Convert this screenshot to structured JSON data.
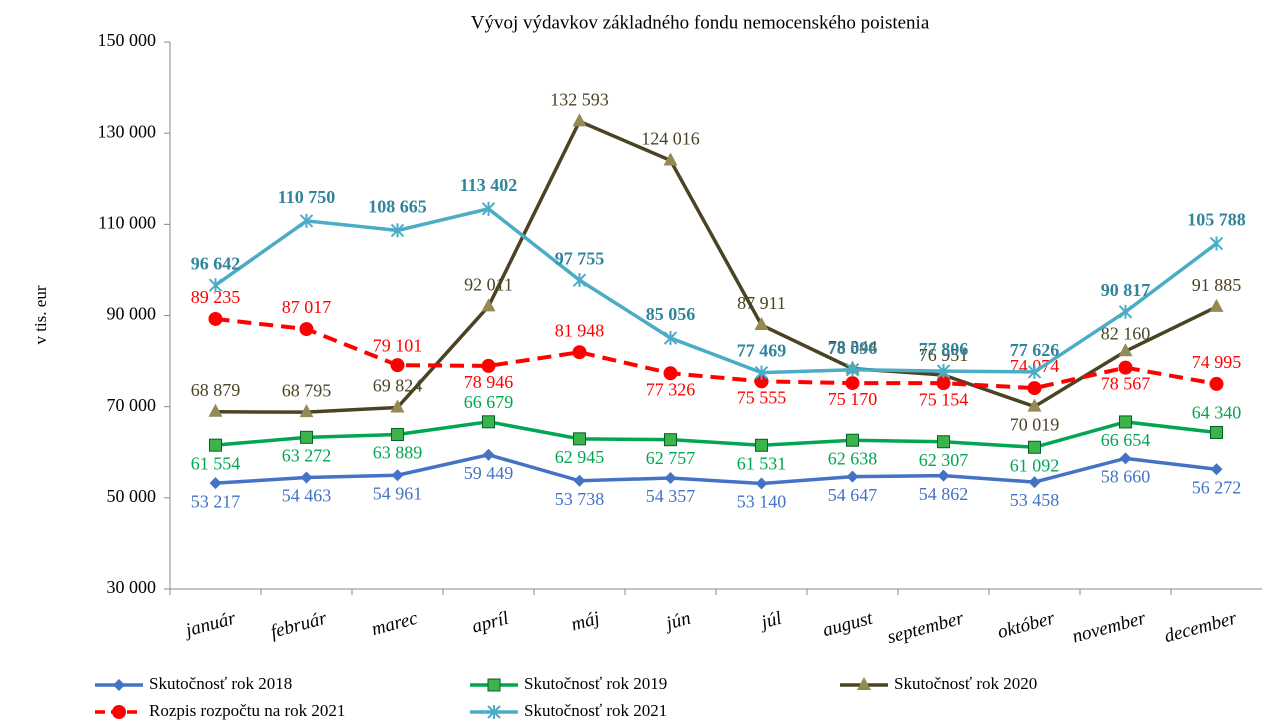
{
  "chart_data": {
    "type": "line",
    "title": "Vývoj výdavkov základného fondu nemocenského poistenia",
    "y_label": "v tis. eur",
    "categories": [
      "január",
      "február",
      "marec",
      "apríl",
      "máj",
      "jún",
      "júl",
      "august",
      "september",
      "október",
      "november",
      "december"
    ],
    "ylim": [
      30000,
      150000
    ],
    "yticks": [
      {
        "value": 30000,
        "label": "30 000"
      },
      {
        "value": 50000,
        "label": "50 000"
      },
      {
        "value": 70000,
        "label": "70 000"
      },
      {
        "value": 90000,
        "label": "90 000"
      },
      {
        "value": 110000,
        "label": "110 000"
      },
      {
        "value": 130000,
        "label": "130 000"
      },
      {
        "value": 150000,
        "label": "150 000"
      }
    ],
    "grid": false,
    "legend": "bottom",
    "series": [
      {
        "name": "Skutočnosť rok 2018",
        "color": "#4472c4",
        "marker": "diamond",
        "values": [
          53217,
          54463,
          54961,
          59449,
          53738,
          54357,
          53140,
          54647,
          54862,
          53458,
          58660,
          56272
        ],
        "value_labels": [
          "53 217",
          "54 463",
          "54 961",
          "59 449",
          "53 738",
          "54 357",
          "53 140",
          "54 647",
          "54 862",
          "53 458",
          "58 660",
          "56 272"
        ]
      },
      {
        "name": "Skutočnosť rok 2019",
        "color": "#00a651",
        "marker": "square",
        "values": [
          61554,
          63272,
          63889,
          66679,
          62945,
          62757,
          61531,
          62638,
          62307,
          61092,
          66654,
          64340
        ],
        "value_labels": [
          "61 554",
          "63 272",
          "63 889",
          "66 679",
          "62 945",
          "62 757",
          "61 531",
          "62 638",
          "62 307",
          "61 092",
          "66 654",
          "64 340"
        ]
      },
      {
        "name": "Skutočnosť rok 2020",
        "color": "#4a4324",
        "marker": "triangle",
        "values": [
          68879,
          68795,
          69824,
          92011,
          132593,
          124016,
          87911,
          78344,
          76951,
          70019,
          82160,
          91885
        ],
        "value_labels": [
          "68 879",
          "68 795",
          "69 824",
          "92 011",
          "132 593",
          "124 016",
          "87 911",
          "78 344",
          "76 951",
          "70 019",
          "82 160",
          "91 885"
        ]
      },
      {
        "name": "Rozpis rozpočtu na rok 2021",
        "color": "#ff0000",
        "marker": "circle",
        "dashed": true,
        "values": [
          89235,
          87017,
          79101,
          78946,
          81948,
          77326,
          75555,
          75170,
          75154,
          74074,
          78567,
          74995
        ],
        "value_labels": [
          "89 235",
          "87 017",
          "79 101",
          "78 946",
          "81 948",
          "77 326",
          "75 555",
          "75 170",
          "75 154",
          "74 074",
          "78 567",
          "74 995"
        ]
      },
      {
        "name": "Skutočnosť rok 2021",
        "color": "#4bacc6",
        "marker": "star",
        "values": [
          96642,
          110750,
          108665,
          113402,
          97755,
          85056,
          77469,
          78096,
          77806,
          77626,
          90817,
          105788
        ],
        "value_labels": [
          "96 642",
          "110 750",
          "108 665",
          "113 402",
          "97 755",
          "85 056",
          "77 469",
          "78 096",
          "77 806",
          "77 626",
          "90 817",
          "105 788"
        ]
      }
    ]
  }
}
